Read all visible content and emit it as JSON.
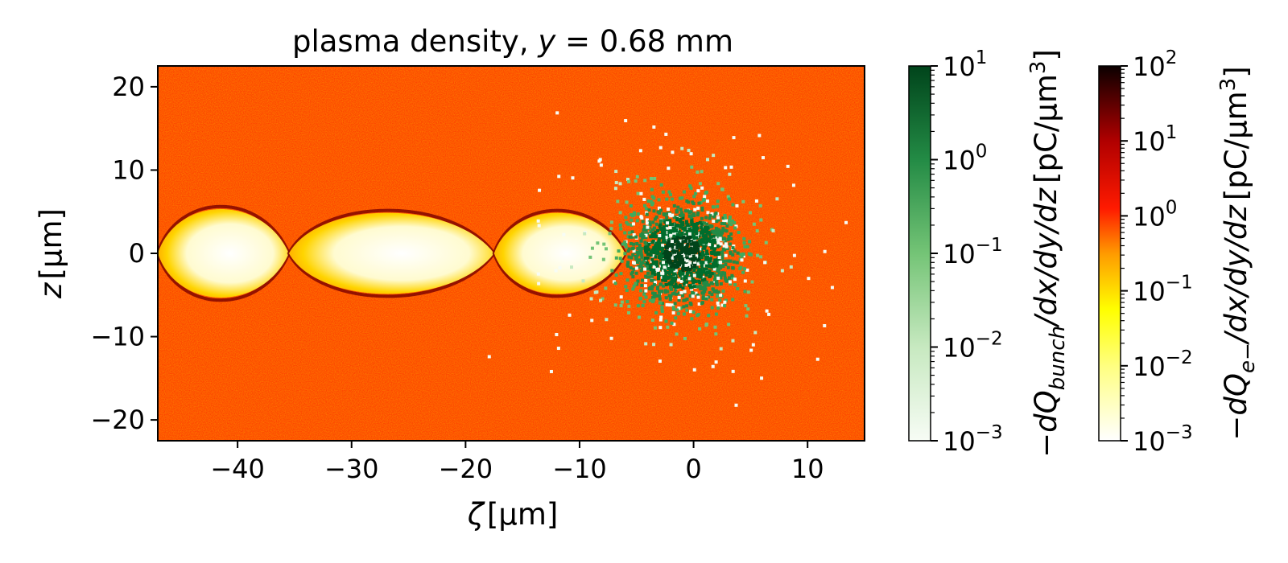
{
  "chart_data": {
    "type": "heatmap",
    "title": {
      "prefix": "plasma density, ",
      "var": "y",
      "suffix": " = 0.68 mm"
    },
    "xlabel": {
      "sym": "ζ",
      "unit": "[µm]"
    },
    "ylabel": {
      "sym": "z",
      "unit": "[µm]"
    },
    "xlim": [
      -47,
      15
    ],
    "ylim": [
      -22.5,
      22.5
    ],
    "xticks": [
      -40,
      -30,
      -20,
      -10,
      0,
      10
    ],
    "yticks": [
      -20,
      -10,
      0,
      10,
      20
    ],
    "bubbles": [
      {
        "x0": -47,
        "x1": -35.5,
        "z_max": 6.0
      },
      {
        "x0": -35.5,
        "x1": -17.5,
        "z_max": 5.5
      },
      {
        "x0": -17.5,
        "x1": -6.0,
        "z_max": 5.5
      }
    ],
    "bunch": {
      "center_x": -1,
      "center_z": 0,
      "sigma_x": 2.3,
      "sigma_z": 3.0,
      "particles": 1800
    },
    "background_color": "#ff4a00",
    "colorbars": [
      {
        "name": "bunch",
        "cmap": "Greens",
        "scale": "log",
        "range": [
          0.001,
          10
        ],
        "ticks": [
          {
            "base": "10",
            "exp": "1"
          },
          {
            "base": "10",
            "exp": "0"
          },
          {
            "base": "10",
            "exp": "−1"
          },
          {
            "base": "10",
            "exp": "−2"
          },
          {
            "base": "10",
            "exp": "−3"
          }
        ],
        "label": {
          "pre": "−dQ",
          "sub": "bunch",
          "post": "/dx/dy/dz",
          "unit": "[pC/µm",
          "unit_exp": "3",
          "unit_close": "]"
        }
      },
      {
        "name": "electrons",
        "cmap": "hot_r",
        "scale": "log",
        "range": [
          0.001,
          100
        ],
        "ticks": [
          {
            "base": "10",
            "exp": "2"
          },
          {
            "base": "10",
            "exp": "1"
          },
          {
            "base": "10",
            "exp": "0"
          },
          {
            "base": "10",
            "exp": "−1"
          },
          {
            "base": "10",
            "exp": "−2"
          },
          {
            "base": "10",
            "exp": "−3"
          }
        ],
        "label": {
          "pre": "−dQ",
          "sub": "e−",
          "post": "/dx/dy/dz",
          "unit": "[pC/µm",
          "unit_exp": "3",
          "unit_close": "]"
        }
      }
    ]
  }
}
